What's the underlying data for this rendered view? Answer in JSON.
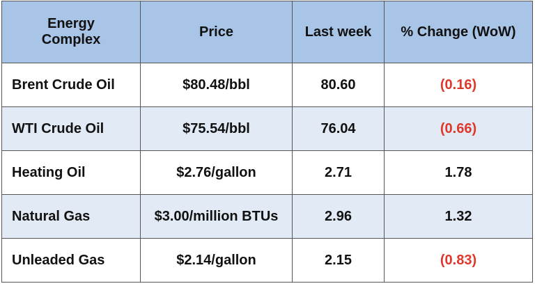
{
  "table": {
    "header": [
      "Energy Complex",
      "Price",
      "Last week",
      "% Change (WoW)"
    ],
    "rows": [
      [
        "Brent Crude Oil",
        "$80.48/bbl",
        "80.60",
        "(0.16)"
      ],
      [
        "WTI Crude Oil",
        "$75.54/bbl",
        "76.04",
        "(0.66)"
      ],
      [
        "Heating Oil",
        "$2.76/gallon",
        "2.71",
        "1.78"
      ],
      [
        "Natural Gas",
        "$3.00/million BTUs",
        "2.96",
        "1.32"
      ],
      [
        "Unleaded Gas",
        "$2.14/gallon",
        "2.15",
        "(0.83)"
      ]
    ]
  }
}
